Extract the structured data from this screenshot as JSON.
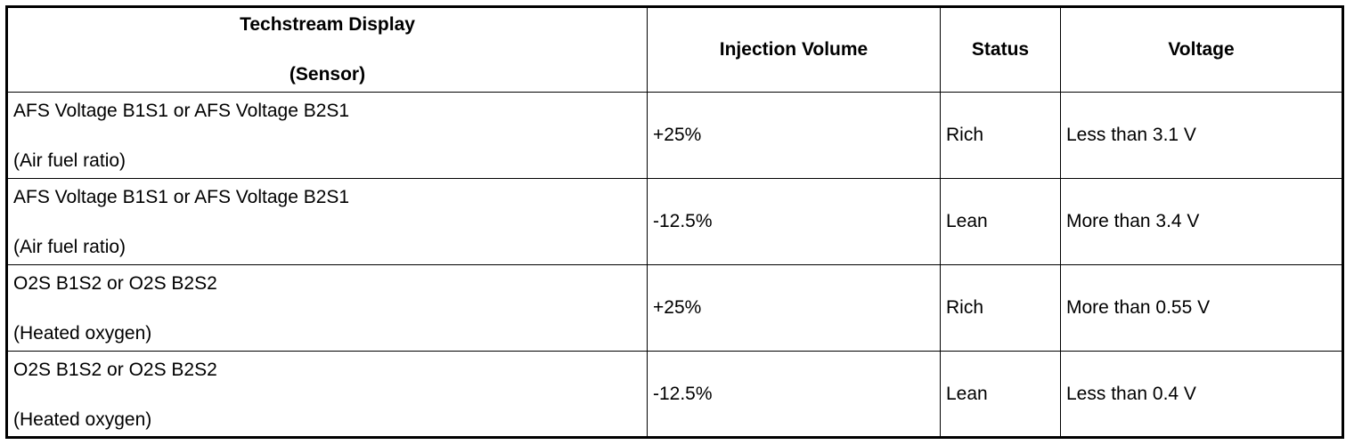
{
  "table": {
    "headers": {
      "sensor_line1": "Techstream Display",
      "sensor_line2": "(Sensor)",
      "injection": "Injection Volume",
      "status": "Status",
      "voltage": "Voltage"
    },
    "rows": [
      {
        "sensor": "AFS Voltage B1S1 or AFS Voltage B2S1",
        "sensor_desc": "(Air fuel ratio)",
        "injection": "+25%",
        "status": "Rich",
        "voltage": "Less than 3.1 V"
      },
      {
        "sensor": "AFS Voltage B1S1 or AFS Voltage B2S1",
        "sensor_desc": "(Air fuel ratio)",
        "injection": "-12.5%",
        "status": "Lean",
        "voltage": "More than 3.4 V"
      },
      {
        "sensor": "O2S B1S2 or O2S B2S2",
        "sensor_desc": "(Heated oxygen)",
        "injection": "+25%",
        "status": "Rich",
        "voltage": "More than 0.55 V"
      },
      {
        "sensor": "O2S B1S2 or O2S B2S2",
        "sensor_desc": "(Heated oxygen)",
        "injection": "-12.5%",
        "status": "Lean",
        "voltage": "Less than 0.4 V"
      }
    ]
  }
}
